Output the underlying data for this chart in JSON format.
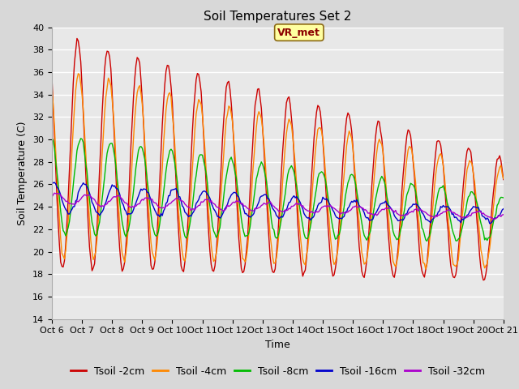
{
  "title": "Soil Temperatures Set 2",
  "xlabel": "Time",
  "ylabel": "Soil Temperature (C)",
  "ylim": [
    14,
    40
  ],
  "xlim": [
    0,
    360
  ],
  "tick_labels": [
    "Oct 6",
    "Oct 7",
    "Oct 8",
    "Oct 9",
    "Oct 10",
    "Oct 11",
    "Oct 12",
    "Oct 13",
    "Oct 14",
    "Oct 15",
    "Oct 16",
    "Oct 17",
    "Oct 18",
    "Oct 19",
    "Oct 20",
    "Oct 21"
  ],
  "tick_positions": [
    0,
    24,
    48,
    72,
    96,
    120,
    144,
    168,
    192,
    216,
    240,
    264,
    288,
    312,
    336,
    360
  ],
  "annotation": "VR_met",
  "series": [
    {
      "label": "Tsoil -2cm",
      "color": "#cc0000"
    },
    {
      "label": "Tsoil -4cm",
      "color": "#ff8800"
    },
    {
      "label": "Tsoil -8cm",
      "color": "#00bb00"
    },
    {
      "label": "Tsoil -16cm",
      "color": "#0000cc"
    },
    {
      "label": "Tsoil -32cm",
      "color": "#aa00cc"
    }
  ],
  "fig_facecolor": "#d8d8d8",
  "ax_facecolor": "#e8e8e8",
  "grid_color": "#ffffff",
  "title_fontsize": 11,
  "tick_fontsize": 8,
  "ylabel_fontsize": 9,
  "xlabel_fontsize": 9,
  "legend_fontsize": 9
}
